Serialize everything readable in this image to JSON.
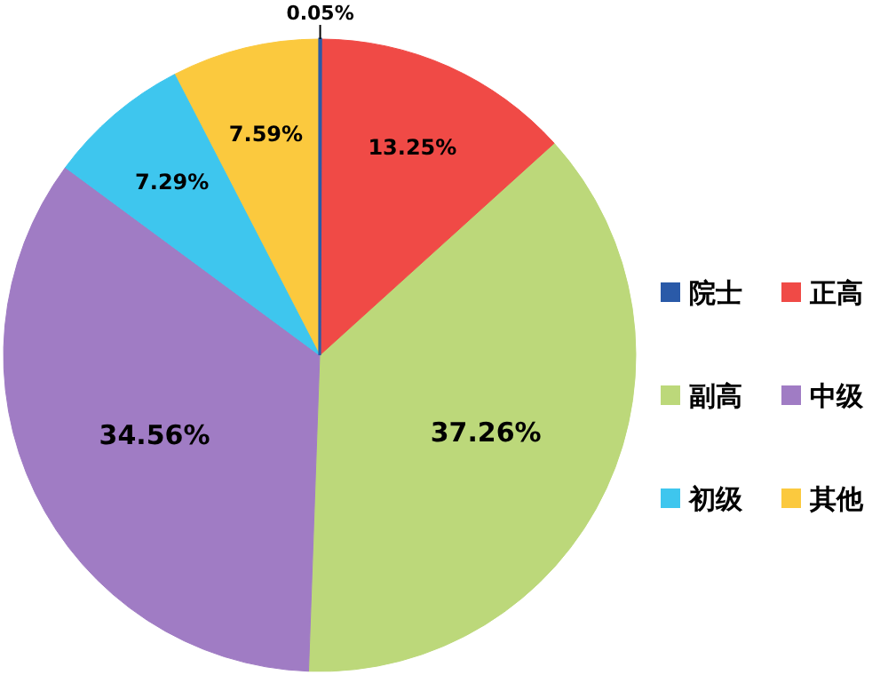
{
  "chart_data": {
    "type": "pie",
    "categories": [
      "院士",
      "正高",
      "副高",
      "中级",
      "初级",
      "其他"
    ],
    "values": [
      0.05,
      13.25,
      37.26,
      34.56,
      7.29,
      7.59
    ],
    "value_labels": [
      "0.05%",
      "13.25%",
      "37.26%",
      "34.56%",
      "7.29%",
      "7.59%"
    ],
    "colors": [
      "#2a5aa8",
      "#f04a46",
      "#bcd87a",
      "#a07cc4",
      "#3ec6ee",
      "#fbc93e"
    ],
    "legend": "right"
  }
}
